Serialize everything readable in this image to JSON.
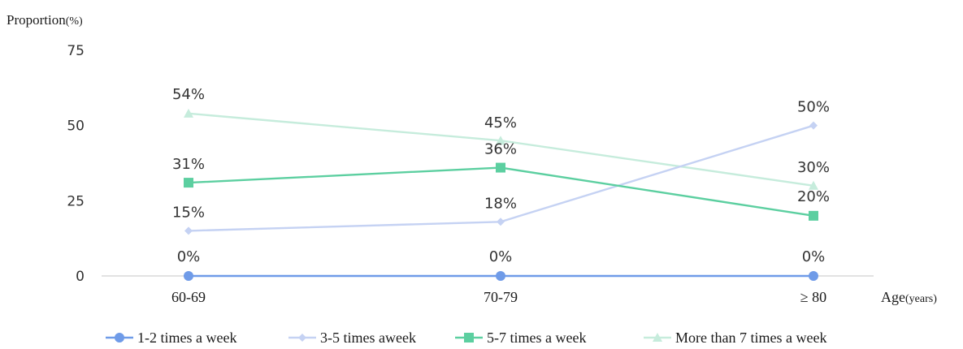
{
  "chart_data": {
    "type": "line",
    "title": "",
    "ylabel": "Proportion",
    "ylabel_unit": "(%)",
    "xlabel": "Age",
    "xlabel_unit": "(years)",
    "categories": [
      "60-69",
      "70-79",
      "≥ 80"
    ],
    "ylim": [
      0,
      75
    ],
    "yticks": [
      0,
      25,
      50,
      75
    ],
    "grid": false,
    "legend": "bottom",
    "series": [
      {
        "name": "1-2 times a week",
        "values": [
          0,
          0,
          0
        ],
        "labels": [
          "0%",
          "0%",
          "0%"
        ],
        "color": "#6f9be8",
        "marker": "circle"
      },
      {
        "name": "3-5 times aweek",
        "values": [
          15,
          18,
          50
        ],
        "labels": [
          "15%",
          "18%",
          "50%"
        ],
        "color": "#c5d2f3",
        "marker": "diamond"
      },
      {
        "name": "5-7 times a week",
        "values": [
          31,
          36,
          20
        ],
        "labels": [
          "31%",
          "36%",
          "20%"
        ],
        "color": "#5ccfa0",
        "marker": "square"
      },
      {
        "name": "More than 7 times a week",
        "values": [
          54,
          45,
          30
        ],
        "labels": [
          "54%",
          "45%",
          "30%"
        ],
        "color": "#c6ecdc",
        "marker": "triangle"
      }
    ]
  }
}
